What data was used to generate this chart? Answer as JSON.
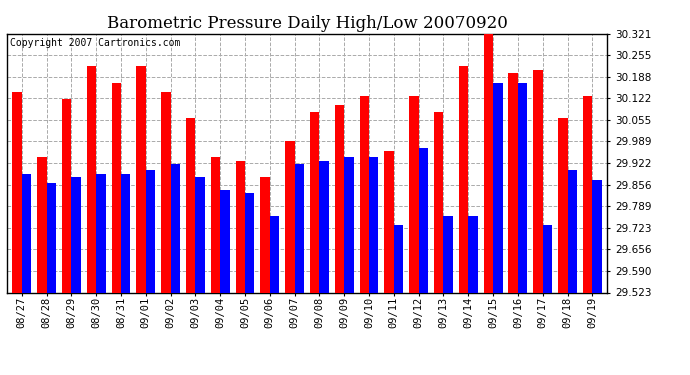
{
  "title": "Barometric Pressure Daily High/Low 20070920",
  "copyright": "Copyright 2007 Cartronics.com",
  "dates": [
    "08/27",
    "08/28",
    "08/29",
    "08/30",
    "08/31",
    "09/01",
    "09/02",
    "09/03",
    "09/04",
    "09/05",
    "09/06",
    "09/07",
    "09/08",
    "09/09",
    "09/10",
    "09/11",
    "09/12",
    "09/13",
    "09/14",
    "09/15",
    "09/16",
    "09/17",
    "09/18",
    "09/19"
  ],
  "highs": [
    30.14,
    29.94,
    30.12,
    30.22,
    30.17,
    30.22,
    30.14,
    30.06,
    29.94,
    29.93,
    29.88,
    29.99,
    30.08,
    30.1,
    30.13,
    29.96,
    30.13,
    30.08,
    30.22,
    30.36,
    30.2,
    30.21,
    30.06,
    30.13
  ],
  "lows": [
    29.89,
    29.86,
    29.88,
    29.89,
    29.89,
    29.9,
    29.92,
    29.88,
    29.84,
    29.83,
    29.76,
    29.92,
    29.93,
    29.94,
    29.94,
    29.73,
    29.97,
    29.76,
    29.76,
    30.17,
    30.17,
    29.73,
    29.9,
    29.87
  ],
  "high_color": "#ff0000",
  "low_color": "#0000ff",
  "bg_color": "#ffffff",
  "plot_bg_color": "#ffffff",
  "grid_color": "#aaaaaa",
  "yticks": [
    29.523,
    29.59,
    29.656,
    29.723,
    29.789,
    29.856,
    29.922,
    29.989,
    30.055,
    30.122,
    30.188,
    30.255,
    30.321
  ],
  "ymin": 29.523,
  "ymax": 30.321,
  "title_fontsize": 12,
  "tick_fontsize": 7.5,
  "copyright_fontsize": 7
}
